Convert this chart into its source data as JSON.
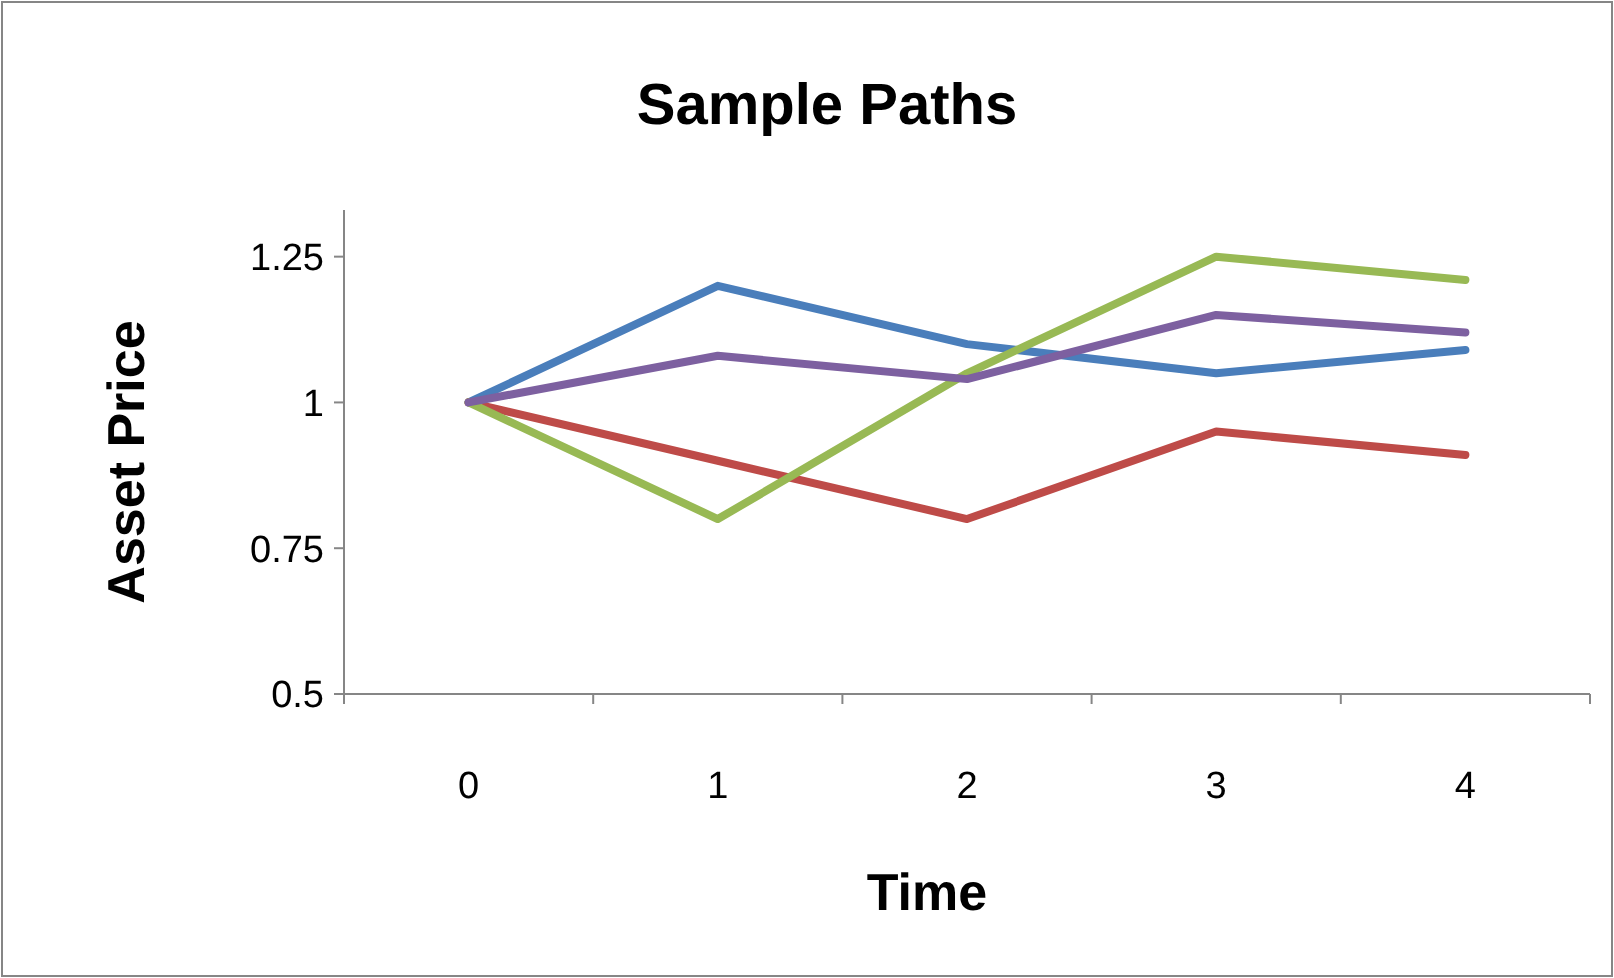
{
  "chart_data": {
    "type": "line",
    "title": "Sample Paths",
    "xlabel": "Time",
    "ylabel": "Asset Price",
    "categories": [
      "0",
      "1",
      "2",
      "3",
      "4"
    ],
    "series": [
      {
        "color": "#4a7ebb",
        "values": [
          1,
          1.2,
          1.1,
          1.05,
          1.09
        ]
      },
      {
        "color": "#be4b48",
        "values": [
          1,
          0.9,
          0.8,
          0.95,
          0.91
        ]
      },
      {
        "color": "#98b954",
        "values": [
          1,
          0.8,
          1.05,
          1.25,
          1.21
        ]
      },
      {
        "color": "#7d60a0",
        "values": [
          1,
          1.08,
          1.04,
          1.15,
          1.12
        ]
      }
    ],
    "ylim": [
      0.5,
      1.33
    ],
    "yticks": [
      0.5,
      0.75,
      1,
      1.25
    ],
    "grid": false,
    "marker": "none",
    "line_style": "solid"
  }
}
